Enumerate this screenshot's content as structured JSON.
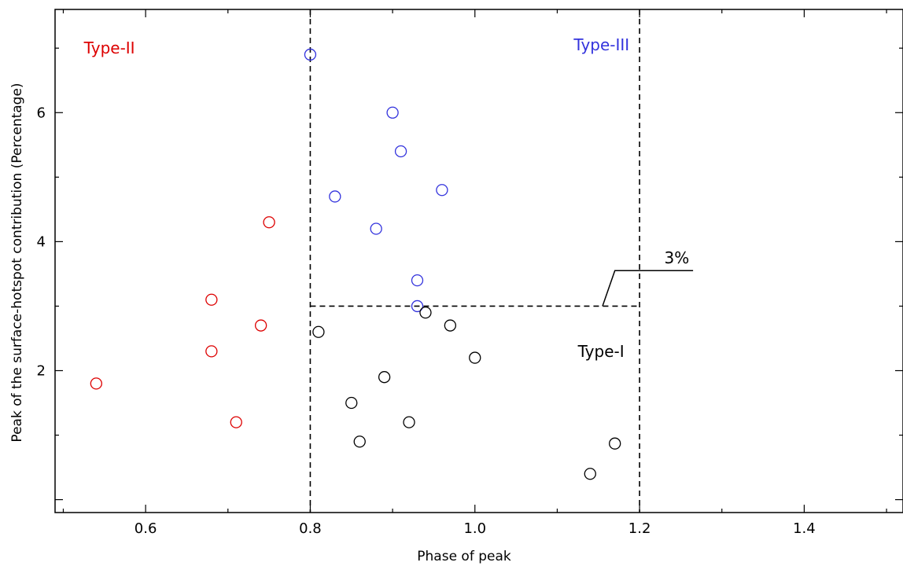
{
  "chart_data": {
    "type": "scatter",
    "title": "",
    "xlabel": "Phase of peak",
    "ylabel": "Peak of the surface-hotspot contribution (Percentage)",
    "xlim": [
      0.49,
      1.52
    ],
    "ylim": [
      -0.2,
      7.6
    ],
    "xticks": [
      0.6,
      0.8,
      1.0,
      1.2,
      1.4
    ],
    "xtick_labels": [
      "0.6",
      "0.8",
      "1.0",
      "1.2",
      "1.4"
    ],
    "yticks": [
      2,
      4,
      6
    ],
    "ytick_labels": [
      "2",
      "4",
      "6"
    ],
    "grid": false,
    "series": [
      {
        "color": "#dd0000",
        "marker": "open-circle",
        "points": [
          {
            "x": 0.54,
            "y": 1.8
          },
          {
            "x": 0.68,
            "y": 3.1
          },
          {
            "x": 0.68,
            "y": 2.3
          },
          {
            "x": 0.71,
            "y": 1.2
          },
          {
            "x": 0.74,
            "y": 2.7
          },
          {
            "x": 0.75,
            "y": 4.3
          }
        ]
      },
      {
        "color": "#3333dd",
        "marker": "open-circle",
        "points": [
          {
            "x": 0.8,
            "y": 6.9
          },
          {
            "x": 0.83,
            "y": 4.7
          },
          {
            "x": 0.88,
            "y": 4.2
          },
          {
            "x": 0.9,
            "y": 6.0
          },
          {
            "x": 0.91,
            "y": 5.4
          },
          {
            "x": 0.93,
            "y": 3.4
          },
          {
            "x": 0.93,
            "y": 3.0
          },
          {
            "x": 0.96,
            "y": 4.8
          }
        ]
      },
      {
        "color": "#000000",
        "marker": "open-circle",
        "points": [
          {
            "x": 0.81,
            "y": 2.6
          },
          {
            "x": 0.85,
            "y": 1.5
          },
          {
            "x": 0.86,
            "y": 0.9
          },
          {
            "x": 0.89,
            "y": 1.9
          },
          {
            "x": 0.92,
            "y": 1.2
          },
          {
            "x": 0.94,
            "y": 2.9
          },
          {
            "x": 0.97,
            "y": 2.7
          },
          {
            "x": 1.0,
            "y": 2.2
          },
          {
            "x": 1.14,
            "y": 0.4
          },
          {
            "x": 1.17,
            "y": 0.87
          }
        ]
      }
    ],
    "reference_lines": [
      {
        "orientation": "vertical",
        "x": 0.8,
        "style": "dashed"
      },
      {
        "orientation": "vertical",
        "x": 1.2,
        "style": "dashed"
      },
      {
        "orientation": "horizontal",
        "y": 3.0,
        "x_from": 0.8,
        "x_to": 1.2,
        "style": "dashed"
      }
    ],
    "annotations": [
      {
        "text": "Type-II",
        "color": "#dd0000",
        "x": 0.525,
        "y": 7.0
      },
      {
        "text": "Type-III",
        "color": "#3333dd",
        "x": 1.12,
        "y": 7.05
      },
      {
        "text": "Type-I",
        "color": "#000000",
        "x": 1.125,
        "y": 2.3
      },
      {
        "text": "3%",
        "color": "#000000",
        "x": 1.23,
        "y": 3.75
      }
    ]
  }
}
